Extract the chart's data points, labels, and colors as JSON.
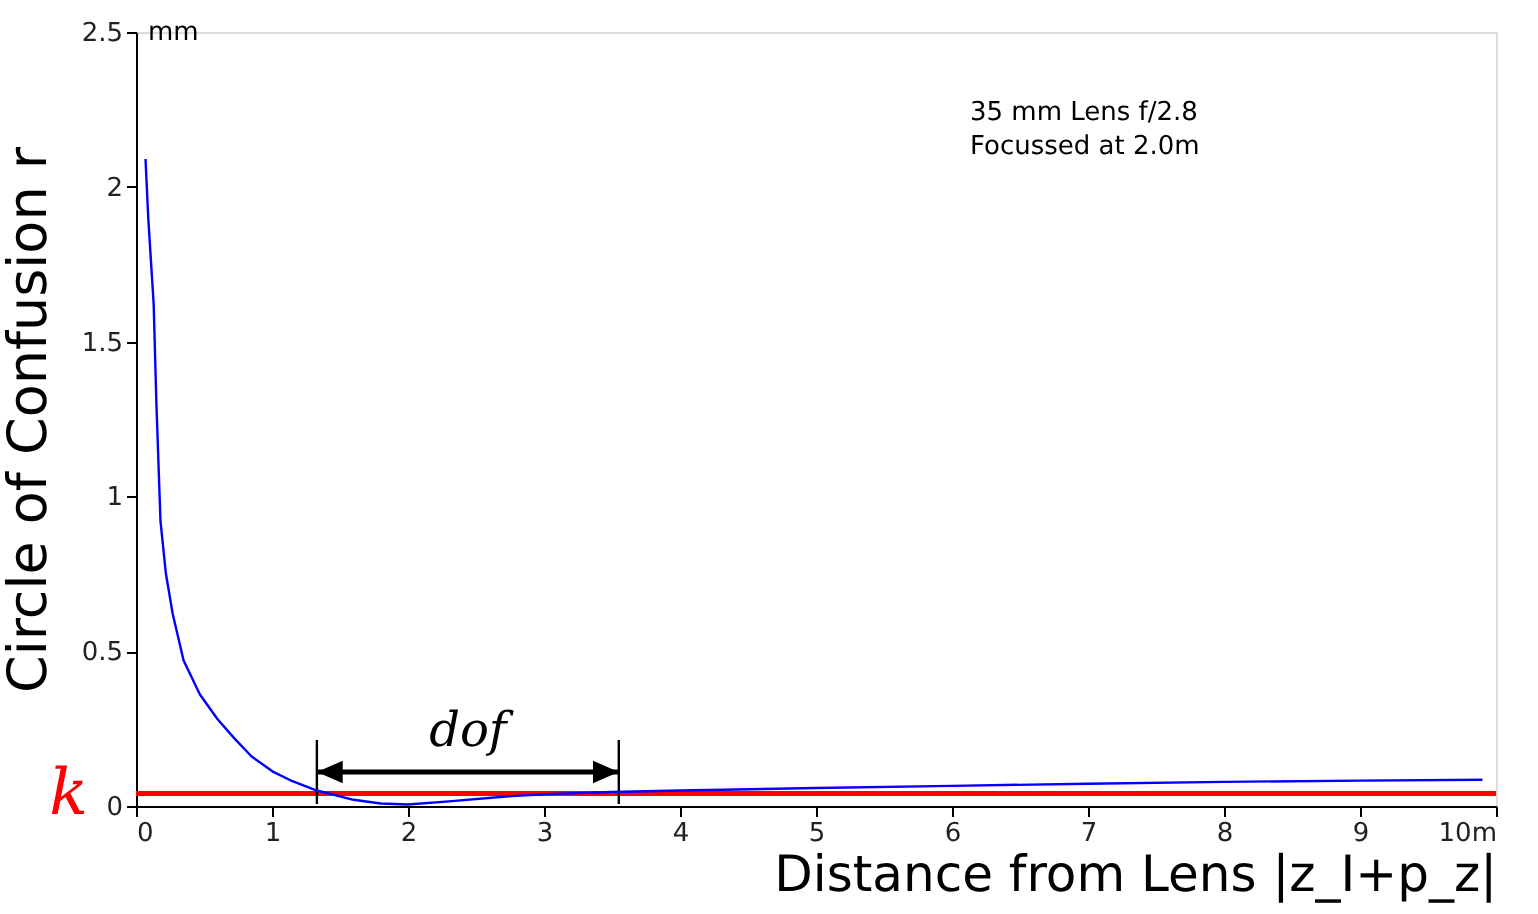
{
  "chart_data": {
    "type": "line",
    "xlabel": "Distance from Lens |z_I+p_z|",
    "ylabel": "Circle of Confusion r",
    "annotations": [
      "35 mm Lens f/2.8\nFocussed at 2.0m",
      "mm",
      "dof"
    ],
    "series": [
      {
        "color": "#0000ff",
        "x": [
          0.07,
          0.09,
          0.13,
          0.15,
          0.18,
          0.22,
          0.27,
          0.35,
          0.47,
          0.6,
          0.72,
          0.85,
          1.01,
          1.15,
          1.33,
          1.6,
          1.8,
          2.0,
          2.3,
          2.7,
          3.0,
          3.5,
          4.0,
          5.0,
          6.0,
          7.0,
          8.0,
          9.0,
          9.9
        ],
        "values": [
          2.09,
          1.9,
          1.62,
          1.3,
          0.92,
          0.75,
          0.62,
          0.47,
          0.36,
          0.28,
          0.22,
          0.16,
          0.11,
          0.08,
          0.05,
          0.02,
          0.008,
          0.005,
          0.015,
          0.03,
          0.038,
          0.045,
          0.05,
          0.058,
          0.065,
          0.072,
          0.078,
          0.082,
          0.085
        ]
      }
    ],
    "ref_lines": [
      {
        "axis": "y",
        "value": 0.04,
        "label": "k",
        "color": "#ff0000"
      },
      {
        "axis": "x",
        "value": 1.33,
        "color": "#000000"
      },
      {
        "axis": "x",
        "value": 3.55,
        "color": "#000000"
      }
    ],
    "xlim": [
      0,
      10
    ],
    "xticks": [
      0,
      1,
      2,
      3,
      4,
      5,
      6,
      7,
      8,
      9,
      {
        "value": 10,
        "label": "10m"
      }
    ],
    "ylim": [
      0,
      2.5
    ],
    "yticks": [
      0,
      0.5,
      1,
      1.5,
      2,
      2.5
    ],
    "grid": false,
    "marker": "none",
    "line_style": "solid"
  }
}
